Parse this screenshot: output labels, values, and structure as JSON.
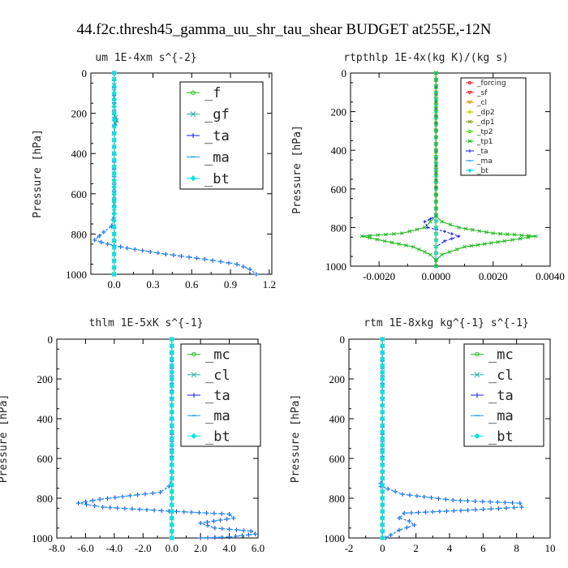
{
  "figure": {
    "title": "44.f2c.thresh45_gamma_uu_shr_tau_shear  BUDGET at255E,-12N"
  },
  "colors": {
    "green": "#22bb22",
    "blue": "#1a1aee",
    "teal": "#22aaaa",
    "cyan": "#00e5e5",
    "red": "#dd2222",
    "orange": "#dd9900",
    "yellow": "#cccc00",
    "olive": "#889900",
    "lime": "#44dd00",
    "sky": "#2299ee"
  },
  "chart_data": [
    {
      "type": "line",
      "title": "um  1E-4xm s^{-2}",
      "ylabel": "Pressure [hPa]",
      "xlim": [
        -0.18,
        1.22
      ],
      "ylim": [
        1000,
        0
      ],
      "xticks": [
        0.0,
        0.3,
        0.6,
        0.9,
        1.2
      ],
      "xtick_labels": [
        "0.0",
        "0.3",
        "0.6",
        "0.9",
        "1.2"
      ],
      "yticks": [
        0,
        200,
        400,
        600,
        800,
        1000
      ],
      "ytick_labels": [
        "0",
        "200",
        "400",
        "600",
        "800",
        "1000"
      ],
      "legend_style": "big",
      "series": [
        {
          "name": "_f",
          "color": "green",
          "marker": "circle",
          "x": [
            0,
            0,
            0,
            0,
            0,
            0,
            0,
            0,
            0,
            0,
            0
          ],
          "y": [
            0,
            100,
            200,
            300,
            400,
            500,
            600,
            700,
            800,
            900,
            1000
          ]
        },
        {
          "name": "_gf",
          "color": "teal",
          "marker": "x",
          "x": [
            0,
            0,
            0,
            0,
            0,
            0.01,
            0.02,
            0.01,
            0,
            0,
            0,
            0
          ],
          "y": [
            0,
            60,
            120,
            160,
            200,
            220,
            235,
            250,
            300,
            500,
            800,
            1000
          ]
        },
        {
          "name": "_ta",
          "color": "blue",
          "marker": "plus",
          "x": [
            0,
            0,
            -0.02,
            -0.08,
            -0.15,
            -0.05,
            0.1,
            0.4,
            0.7,
            0.95,
            1.05,
            1.1
          ],
          "y": [
            0,
            700,
            760,
            790,
            830,
            850,
            870,
            900,
            925,
            950,
            975,
            1000
          ]
        },
        {
          "name": "_ma",
          "color": "sky",
          "marker": "dash",
          "x": [
            0,
            0,
            -0.02,
            -0.08,
            -0.15,
            -0.05,
            0.1,
            0.4,
            0.7,
            0.95,
            1.05,
            1.1
          ],
          "y": [
            0,
            700,
            760,
            790,
            830,
            850,
            870,
            900,
            925,
            950,
            975,
            1000
          ]
        },
        {
          "name": "_bt",
          "color": "cyan",
          "marker": "diamond",
          "x": [
            0,
            0,
            0,
            0,
            0,
            0,
            0,
            0,
            0,
            0,
            0
          ],
          "y": [
            0,
            100,
            200,
            300,
            400,
            500,
            600,
            700,
            800,
            900,
            1000
          ]
        }
      ]
    },
    {
      "type": "line",
      "title": "rtpthlp  1E-4x(kg K)/(kg s)",
      "ylabel": "Pressure [hPa]",
      "xlim": [
        -0.003,
        0.004
      ],
      "ylim": [
        1000,
        0
      ],
      "xticks": [
        -0.002,
        0.0,
        0.002,
        0.004
      ],
      "xtick_labels": [
        "-0.0020",
        "0.0000",
        "0.0020",
        "0.0040"
      ],
      "yticks": [
        0,
        200,
        400,
        600,
        800,
        1000
      ],
      "ytick_labels": [
        "0",
        "200",
        "400",
        "600",
        "800",
        "1000"
      ],
      "legend_style": "small",
      "series": [
        {
          "name": "_forcing",
          "color": "red",
          "marker": "circle",
          "x": [
            0,
            0,
            0,
            0,
            0,
            0,
            0,
            0,
            0,
            0,
            0
          ],
          "y": [
            0,
            100,
            200,
            300,
            400,
            500,
            600,
            700,
            800,
            900,
            1000
          ]
        },
        {
          "name": "_sf",
          "color": "red",
          "marker": "tri",
          "x": [
            0,
            0,
            0,
            0,
            0,
            0,
            0,
            0,
            0,
            0,
            0
          ],
          "y": [
            0,
            100,
            200,
            300,
            400,
            500,
            600,
            700,
            800,
            900,
            1000
          ]
        },
        {
          "name": "_cl",
          "color": "orange",
          "marker": "tri",
          "x": [
            0,
            0,
            0,
            0,
            0,
            0,
            0,
            0,
            0,
            0,
            0
          ],
          "y": [
            0,
            100,
            200,
            300,
            400,
            500,
            600,
            700,
            800,
            900,
            1000
          ]
        },
        {
          "name": "_dp2",
          "color": "yellow",
          "marker": "circle",
          "x": [
            0,
            0,
            0,
            0,
            0,
            0,
            0,
            0,
            0,
            0,
            0
          ],
          "y": [
            0,
            100,
            200,
            300,
            400,
            500,
            600,
            700,
            800,
            900,
            1000
          ]
        },
        {
          "name": "_dp1",
          "color": "olive",
          "marker": "x",
          "x": [
            0,
            0,
            0,
            0,
            0,
            0,
            0,
            0,
            0,
            0,
            0
          ],
          "y": [
            0,
            100,
            200,
            300,
            400,
            500,
            600,
            700,
            800,
            900,
            1000
          ]
        },
        {
          "name": "_tp2",
          "color": "lime",
          "marker": "circle",
          "x": [
            0,
            0,
            0,
            0,
            0,
            0,
            0,
            0,
            0,
            0,
            0
          ],
          "y": [
            0,
            100,
            200,
            300,
            400,
            500,
            600,
            700,
            800,
            900,
            1000
          ]
        },
        {
          "name": "_tp1",
          "color": "green",
          "marker": "x",
          "x": [
            0,
            0,
            -0.0002,
            -0.0004,
            -0.0012,
            -0.0026,
            -0.0018,
            -0.0008,
            -0.0002,
            0,
            0
          ],
          "y": [
            0,
            740,
            770,
            800,
            830,
            845,
            870,
            900,
            940,
            970,
            1000
          ]
        },
        {
          "name": "_ta",
          "color": "blue",
          "marker": "plus",
          "x": [
            0,
            0,
            -0.0004,
            -0.0003,
            0.0003,
            0.0008,
            0.0003,
            0,
            0
          ],
          "y": [
            0,
            740,
            770,
            800,
            820,
            845,
            870,
            900,
            1000
          ]
        },
        {
          "name": "_ma",
          "color": "sky",
          "marker": "dash",
          "x": [
            0,
            0,
            0,
            0,
            0,
            0,
            0,
            0,
            0,
            0,
            0
          ],
          "y": [
            0,
            100,
            200,
            300,
            400,
            500,
            600,
            700,
            800,
            900,
            1000
          ]
        },
        {
          "name": "_bt",
          "color": "cyan",
          "marker": "diamond",
          "x": [
            0,
            0,
            0,
            0,
            0,
            0,
            0,
            0,
            0,
            0,
            0
          ],
          "y": [
            0,
            100,
            200,
            300,
            400,
            500,
            600,
            700,
            800,
            900,
            1000
          ]
        }
      ],
      "extra_series": [
        {
          "color": "green",
          "marker": "x",
          "x": [
            0,
            0,
            0.0002,
            0.0008,
            0.002,
            0.0035,
            0.0024,
            0.001,
            0.0002,
            0,
            0
          ],
          "y": [
            0,
            740,
            770,
            800,
            830,
            845,
            870,
            900,
            940,
            970,
            1000
          ]
        }
      ]
    },
    {
      "type": "line",
      "title": "thlm  1E-5xK s^{-1}",
      "ylabel": "Pressure [hPa]",
      "xlim": [
        -8.0,
        6.0
      ],
      "ylim": [
        1000,
        0
      ],
      "xticks": [
        -8,
        -6,
        -4,
        -2,
        0,
        2,
        4,
        6
      ],
      "xtick_labels": [
        "-8.0",
        "-6.0",
        "-4.0",
        "-2.0",
        "0.0",
        "2.0",
        "4.0",
        "6.0"
      ],
      "yticks": [
        0,
        200,
        400,
        600,
        800,
        1000
      ],
      "ytick_labels": [
        "0",
        "200",
        "400",
        "600",
        "800",
        "1000"
      ],
      "legend_style": "big",
      "series": [
        {
          "name": "_mc",
          "color": "green",
          "marker": "circle",
          "x": [
            0,
            0,
            0,
            0,
            0,
            0,
            0,
            0,
            0,
            0,
            0
          ],
          "y": [
            0,
            100,
            200,
            300,
            400,
            500,
            600,
            700,
            800,
            900,
            1000
          ]
        },
        {
          "name": "_cl",
          "color": "teal",
          "marker": "x",
          "x": [
            0,
            0,
            0,
            0,
            0,
            0,
            0,
            0,
            0,
            0,
            0
          ],
          "y": [
            0,
            100,
            200,
            300,
            400,
            500,
            600,
            700,
            800,
            900,
            1000
          ]
        },
        {
          "name": "_ta",
          "color": "blue",
          "marker": "plus",
          "x": [
            0,
            0,
            -0.2,
            -0.8,
            -5.0,
            -6.5,
            -4.8,
            -0.2,
            4.0,
            4.3,
            2.0,
            3.0,
            5.5,
            5.8,
            4.0,
            2.0
          ],
          "y": [
            0,
            700,
            740,
            770,
            805,
            825,
            845,
            865,
            880,
            900,
            925,
            950,
            965,
            980,
            995,
            1000
          ]
        },
        {
          "name": "_ma",
          "color": "sky",
          "marker": "dash",
          "x": [
            0,
            0,
            -0.2,
            -0.8,
            -5.0,
            -6.5,
            -4.8,
            -0.2,
            4.0,
            4.3,
            2.0,
            3.0,
            5.5,
            5.8,
            4.0,
            2.0
          ],
          "y": [
            0,
            700,
            740,
            770,
            805,
            825,
            845,
            865,
            880,
            900,
            925,
            950,
            965,
            980,
            995,
            1000
          ]
        },
        {
          "name": "_bt",
          "color": "cyan",
          "marker": "diamond",
          "x": [
            0,
            0,
            0,
            0,
            0,
            0,
            0,
            0,
            0,
            0,
            0
          ],
          "y": [
            0,
            100,
            200,
            300,
            400,
            500,
            600,
            700,
            800,
            900,
            1000
          ]
        }
      ]
    },
    {
      "type": "line",
      "title": "rtm  1E-8xkg kg^{-1} s^{-1}",
      "ylabel": "Pressure [hPa]",
      "xlim": [
        -2,
        10
      ],
      "ylim": [
        1000,
        0
      ],
      "xticks": [
        -2,
        0,
        2,
        4,
        6,
        8,
        10
      ],
      "xtick_labels": [
        "-2",
        "0",
        "2",
        "4",
        "6",
        "8",
        "10"
      ],
      "yticks": [
        0,
        200,
        400,
        600,
        800,
        1000
      ],
      "ytick_labels": [
        "0",
        "200",
        "400",
        "600",
        "800",
        "1000"
      ],
      "legend_style": "big",
      "series": [
        {
          "name": "_mc",
          "color": "green",
          "marker": "circle",
          "x": [
            0,
            0,
            0,
            0,
            0,
            0,
            0,
            0,
            0,
            0,
            0
          ],
          "y": [
            0,
            100,
            200,
            300,
            400,
            500,
            600,
            700,
            800,
            900,
            1000
          ]
        },
        {
          "name": "_cl",
          "color": "teal",
          "marker": "x",
          "x": [
            0,
            0,
            0,
            0,
            0,
            0,
            0,
            0,
            0,
            0,
            0
          ],
          "y": [
            0,
            100,
            200,
            300,
            400,
            500,
            600,
            700,
            800,
            900,
            1000
          ]
        },
        {
          "name": "_ta",
          "color": "blue",
          "marker": "plus",
          "x": [
            0,
            0,
            -0.1,
            -0.1,
            1.2,
            4.2,
            8.2,
            8.3,
            5.1,
            1.3,
            1.0,
            1.6,
            1.9,
            1.0,
            0.5,
            0.2
          ],
          "y": [
            0,
            700,
            725,
            740,
            780,
            810,
            825,
            845,
            860,
            875,
            900,
            915,
            935,
            960,
            985,
            1000
          ]
        },
        {
          "name": "_ma",
          "color": "sky",
          "marker": "dash",
          "x": [
            0,
            0,
            -0.1,
            -0.1,
            1.2,
            4.2,
            8.2,
            8.3,
            5.1,
            1.3,
            1.0,
            1.6,
            1.9,
            1.0,
            0.5,
            0.2
          ],
          "y": [
            0,
            700,
            725,
            740,
            780,
            810,
            825,
            845,
            860,
            875,
            900,
            915,
            935,
            960,
            985,
            1000
          ]
        },
        {
          "name": "_bt",
          "color": "cyan",
          "marker": "diamond",
          "x": [
            0,
            0,
            0,
            0,
            0,
            0,
            0,
            0,
            0,
            0,
            0
          ],
          "y": [
            0,
            100,
            200,
            300,
            400,
            500,
            600,
            700,
            800,
            900,
            1000
          ]
        }
      ]
    }
  ]
}
